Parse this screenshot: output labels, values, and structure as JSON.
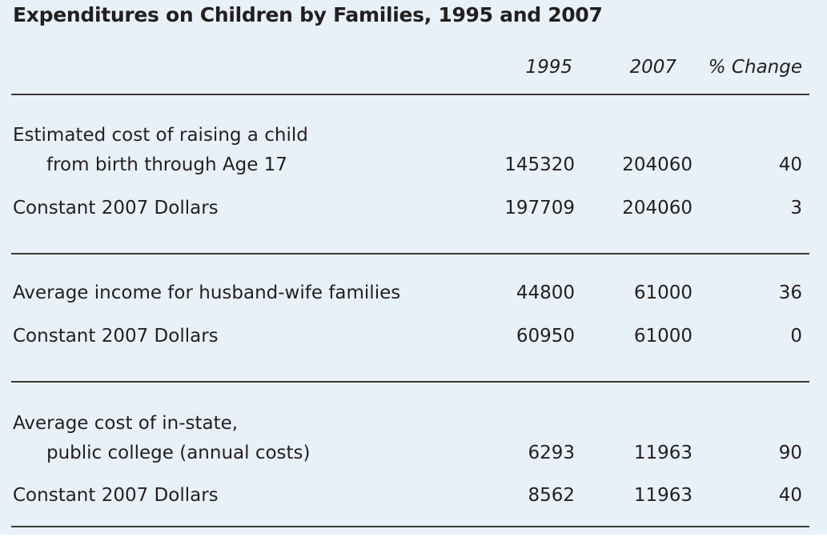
{
  "chart_data": {
    "type": "table",
    "title": "Expenditures on Children by Families, 1995 and 2007",
    "columns": [
      "1995",
      "2007",
      "% Change"
    ],
    "rows": [
      {
        "label_line1": "Estimated cost of raising a child",
        "label_line2": "from birth through Age 17",
        "values": [
          "145320",
          "204060",
          "40"
        ]
      },
      {
        "label_line1": "Constant 2007 Dollars",
        "values": [
          "197709",
          "204060",
          "3"
        ]
      },
      {
        "label_line1": "Average income for husband-wife families",
        "values": [
          "44800",
          "61000",
          "36"
        ]
      },
      {
        "label_line1": "Constant 2007 Dollars",
        "values": [
          "60950",
          "61000",
          "0"
        ]
      },
      {
        "label_line1": "Average cost of in-state,",
        "label_line2": "public college (annual costs)",
        "values": [
          "6293",
          "11963",
          "90"
        ]
      },
      {
        "label_line1": "Constant 2007 Dollars",
        "values": [
          "8562",
          "11963",
          "40"
        ]
      }
    ]
  }
}
